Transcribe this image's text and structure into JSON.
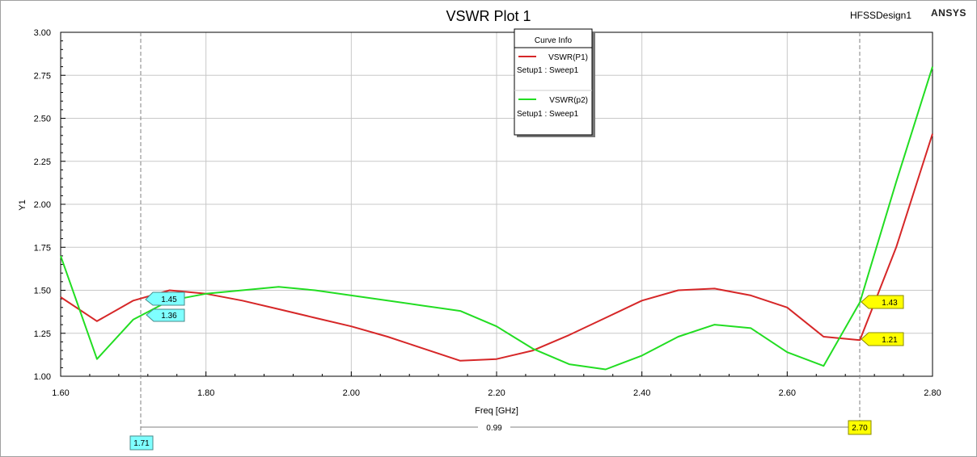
{
  "header": {
    "title": "VSWR Plot 1",
    "design_name": "HFSSDesign1",
    "brand": "ANSYS"
  },
  "legend": {
    "title": "Curve Info",
    "entries": [
      {
        "name": "VSWR(P1)",
        "setup": "Setup1 : Sweep1",
        "color": "#d62728"
      },
      {
        "name": "VSWR(p2)",
        "setup": "Setup1 : Sweep1",
        "color": "#22dd22"
      }
    ]
  },
  "markers": {
    "x_marker_1": "1.71",
    "x_marker_2": "2.70",
    "delta": "0.99",
    "m1_p1": "1.45",
    "m1_p2": "1.36",
    "m2_p2": "1.43",
    "m2_p1": "1.21",
    "marker1_color": "#7fffff",
    "marker2_color": "#ffff00"
  },
  "chart_data": {
    "type": "line",
    "title": "VSWR Plot 1",
    "xlabel": "Freq [GHz]",
    "ylabel": "Y1",
    "xlim": [
      1.6,
      2.8
    ],
    "ylim": [
      1.0,
      3.0
    ],
    "x_ticks": [
      "1.60",
      "1.80",
      "2.00",
      "2.20",
      "2.40",
      "2.60",
      "2.80"
    ],
    "y_ticks": [
      "1.00",
      "1.25",
      "1.50",
      "1.75",
      "2.00",
      "2.25",
      "2.50",
      "2.75",
      "3.00"
    ],
    "grid": true,
    "legend_position": "top-center",
    "series": [
      {
        "name": "VSWR(P1)",
        "color": "#d62728",
        "points": [
          [
            1.6,
            1.46
          ],
          [
            1.65,
            1.32
          ],
          [
            1.7,
            1.44
          ],
          [
            1.75,
            1.5
          ],
          [
            1.8,
            1.48
          ],
          [
            1.85,
            1.44
          ],
          [
            1.9,
            1.39
          ],
          [
            1.95,
            1.34
          ],
          [
            2.0,
            1.29
          ],
          [
            2.05,
            1.23
          ],
          [
            2.1,
            1.16
          ],
          [
            2.15,
            1.09
          ],
          [
            2.2,
            1.1
          ],
          [
            2.25,
            1.15
          ],
          [
            2.3,
            1.24
          ],
          [
            2.35,
            1.34
          ],
          [
            2.4,
            1.44
          ],
          [
            2.45,
            1.5
          ],
          [
            2.5,
            1.51
          ],
          [
            2.55,
            1.47
          ],
          [
            2.6,
            1.4
          ],
          [
            2.65,
            1.23
          ],
          [
            2.7,
            1.21
          ],
          [
            2.75,
            1.75
          ],
          [
            2.8,
            2.41
          ]
        ]
      },
      {
        "name": "VSWR(p2)",
        "color": "#22dd22",
        "points": [
          [
            1.6,
            1.7
          ],
          [
            1.65,
            1.1
          ],
          [
            1.7,
            1.33
          ],
          [
            1.75,
            1.44
          ],
          [
            1.8,
            1.48
          ],
          [
            1.85,
            1.5
          ],
          [
            1.9,
            1.52
          ],
          [
            1.95,
            1.5
          ],
          [
            2.0,
            1.47
          ],
          [
            2.05,
            1.44
          ],
          [
            2.1,
            1.41
          ],
          [
            2.15,
            1.38
          ],
          [
            2.2,
            1.29
          ],
          [
            2.25,
            1.16
          ],
          [
            2.3,
            1.07
          ],
          [
            2.35,
            1.04
          ],
          [
            2.4,
            1.12
          ],
          [
            2.45,
            1.23
          ],
          [
            2.5,
            1.3
          ],
          [
            2.55,
            1.28
          ],
          [
            2.6,
            1.14
          ],
          [
            2.65,
            1.06
          ],
          [
            2.7,
            1.43
          ],
          [
            2.75,
            2.13
          ],
          [
            2.8,
            2.8
          ]
        ]
      }
    ]
  }
}
